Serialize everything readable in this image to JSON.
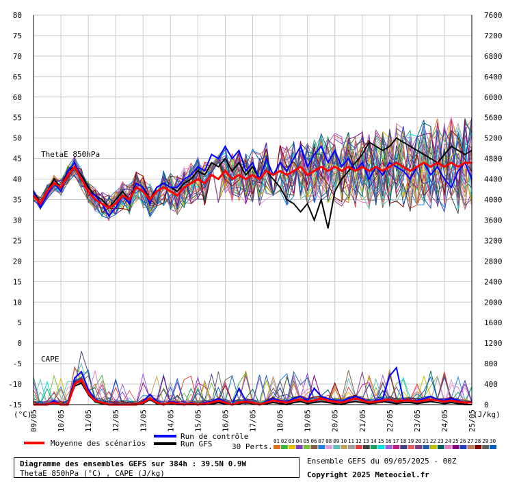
{
  "footer": {
    "title_line1": "Diagramme des ensembles GEFS sur 384h : 39.5N 0.9W",
    "title_line2": "ThetaE 850hPa (°C) , CAPE (J/kg)",
    "ensemble_info": "Ensemble GEFS du 09/05/2025 - 00Z",
    "copyright": "Copyright 2025 Meteociel.fr"
  },
  "legend": {
    "mean_label": "Moyenne des scénarios",
    "control_label": "Run de contrôle",
    "gfs_label": "Run GFS",
    "perts_label": "30 Perts.",
    "pert_numbers": [
      "01",
      "02",
      "03",
      "04",
      "05",
      "06",
      "07",
      "08",
      "09",
      "10",
      "11",
      "12",
      "13",
      "14",
      "15",
      "16",
      "17",
      "18",
      "19",
      "20",
      "21",
      "22",
      "23",
      "24",
      "25",
      "26",
      "27",
      "28",
      "29",
      "30"
    ],
    "pert_colors": [
      "#e07020",
      "#40b040",
      "#e0c000",
      "#8040c0",
      "#80c040",
      "#806040",
      "#2080e0",
      "#e0a0e0",
      "#60c0c0",
      "#c0a060",
      "#a0a0a0",
      "#e04040",
      "#404040",
      "#20a060",
      "#00e0e0",
      "#a060e0",
      "#c02080",
      "#404080",
      "#e06060",
      "#804080",
      "#2060a0",
      "#c0c000",
      "#006060",
      "#e080c0",
      "#800080",
      "#2040c0",
      "#c08060",
      "#800000",
      "#606060",
      "#0060c0"
    ],
    "mean_color": "#ff0000",
    "control_color": "#0000ff",
    "gfs_color": "#000000"
  },
  "chart_data": {
    "type": "line",
    "panels": [
      {
        "label": "ThetaE 850hPa",
        "unit": "°C",
        "ylim": [
          -15,
          80
        ],
        "yticks": [
          80,
          75,
          70,
          65,
          60,
          55,
          50,
          45,
          40,
          35,
          30,
          25,
          20,
          15,
          10,
          5,
          0,
          -5,
          -10,
          -15
        ],
        "series": [
          {
            "name": "Moyenne des scénarios",
            "values": [
              36,
              34,
              37,
              39,
              38,
              41,
              43,
              40,
              37,
              35,
              34,
              33,
              34,
              36,
              35,
              38,
              37,
              35,
              37,
              38,
              37,
              36,
              38,
              39,
              40,
              39,
              41,
              40,
              42,
              40,
              41,
              40,
              41,
              40,
              42,
              41,
              42,
              41,
              42,
              43,
              41,
              42,
              43,
              42,
              43,
              42,
              43,
              42,
              43,
              42,
              43,
              42,
              43,
              44,
              43,
              42,
              43,
              44,
              43,
              44,
              43,
              44,
              43,
              44,
              44
            ]
          },
          {
            "name": "Run de contrôle",
            "values": [
              37,
              33,
              36,
              39,
              37,
              42,
              44,
              40,
              37,
              36,
              34,
              31,
              33,
              36,
              34,
              39,
              38,
              34,
              38,
              39,
              38,
              38,
              40,
              41,
              43,
              42,
              46,
              45,
              48,
              45,
              47,
              42,
              44,
              40,
              45,
              41,
              44,
              42,
              45,
              48,
              43,
              46,
              48,
              44,
              47,
              43,
              45,
              42,
              44,
              40,
              43,
              41,
              44,
              43,
              42,
              40,
              43,
              44,
              41,
              43,
              40,
              38,
              42,
              44,
              40
            ]
          },
          {
            "name": "Run GFS",
            "values": [
              37,
              34,
              37,
              40,
              38,
              42,
              43,
              41,
              38,
              36,
              35,
              33,
              35,
              37,
              35,
              39,
              38,
              35,
              38,
              39,
              38,
              37,
              39,
              40,
              42,
              41,
              44,
              43,
              45,
              42,
              44,
              41,
              43,
              40,
              42,
              40,
              38,
              35,
              34,
              32,
              34,
              30,
              35,
              28,
              37,
              40,
              42,
              44,
              46,
              49,
              48,
              47,
              48,
              50,
              49,
              48,
              47,
              46,
              45,
              44,
              46,
              48,
              47,
              46,
              47
            ]
          }
        ]
      },
      {
        "label": "CAPE",
        "unit": "J/kg",
        "ylim": [
          0,
          7600
        ],
        "yticks": [
          7600,
          7200,
          6800,
          6400,
          6000,
          5600,
          5200,
          4800,
          4400,
          4000,
          3600,
          3200,
          2800,
          2400,
          2000,
          1600,
          1200,
          800,
          400,
          0
        ],
        "series": [
          {
            "name": "Moyenne des scénarios",
            "values": [
              0,
              0,
              0,
              40,
              0,
              0,
              400,
              480,
              220,
              80,
              40,
              0,
              0,
              0,
              0,
              0,
              40,
              120,
              40,
              0,
              40,
              20,
              0,
              20,
              0,
              20,
              40,
              80,
              40,
              0,
              40,
              60,
              40,
              0,
              40,
              80,
              60,
              40,
              80,
              100,
              60,
              80,
              120,
              80,
              60,
              40,
              80,
              120,
              80,
              40,
              60,
              80,
              100,
              60,
              80,
              80,
              60,
              80,
              100,
              80,
              60,
              80,
              60,
              40,
              40
            ]
          },
          {
            "name": "Run de contrôle",
            "values": [
              0,
              0,
              0,
              80,
              0,
              0,
              520,
              640,
              300,
              100,
              40,
              0,
              0,
              0,
              0,
              0,
              60,
              200,
              60,
              0,
              60,
              40,
              0,
              40,
              0,
              40,
              60,
              120,
              60,
              0,
              320,
              80,
              40,
              0,
              60,
              120,
              80,
              60,
              120,
              160,
              80,
              320,
              160,
              120,
              80,
              60,
              120,
              160,
              120,
              40,
              80,
              120,
              560,
              720,
              100,
              80,
              80,
              120,
              160,
              100,
              80,
              120,
              80,
              40,
              60
            ]
          },
          {
            "name": "Run GFS",
            "values": [
              0,
              0,
              0,
              60,
              0,
              0,
              360,
              420,
              200,
              60,
              20,
              0,
              0,
              0,
              0,
              0,
              20,
              100,
              20,
              0,
              20,
              0,
              0,
              0,
              0,
              0,
              20,
              40,
              20,
              0,
              20,
              40,
              20,
              0,
              20,
              40,
              20,
              0,
              40,
              60,
              20,
              40,
              60,
              40,
              20,
              0,
              40,
              60,
              40,
              20,
              40,
              60,
              40,
              20,
              40,
              40,
              20,
              40,
              60,
              40,
              20,
              40,
              20,
              0,
              0
            ]
          }
        ]
      }
    ],
    "x_axis": {
      "labels": [
        "09/05",
        "10/05",
        "11/05",
        "12/05",
        "13/05",
        "14/05",
        "15/05",
        "16/05",
        "17/05",
        "18/05",
        "19/05",
        "20/05",
        "21/05",
        "22/05",
        "23/05",
        "24/05",
        "25/05"
      ],
      "left_unit": "(°C)",
      "right_unit": "(J/kg)"
    },
    "grid": true,
    "legend_position": "bottom"
  }
}
